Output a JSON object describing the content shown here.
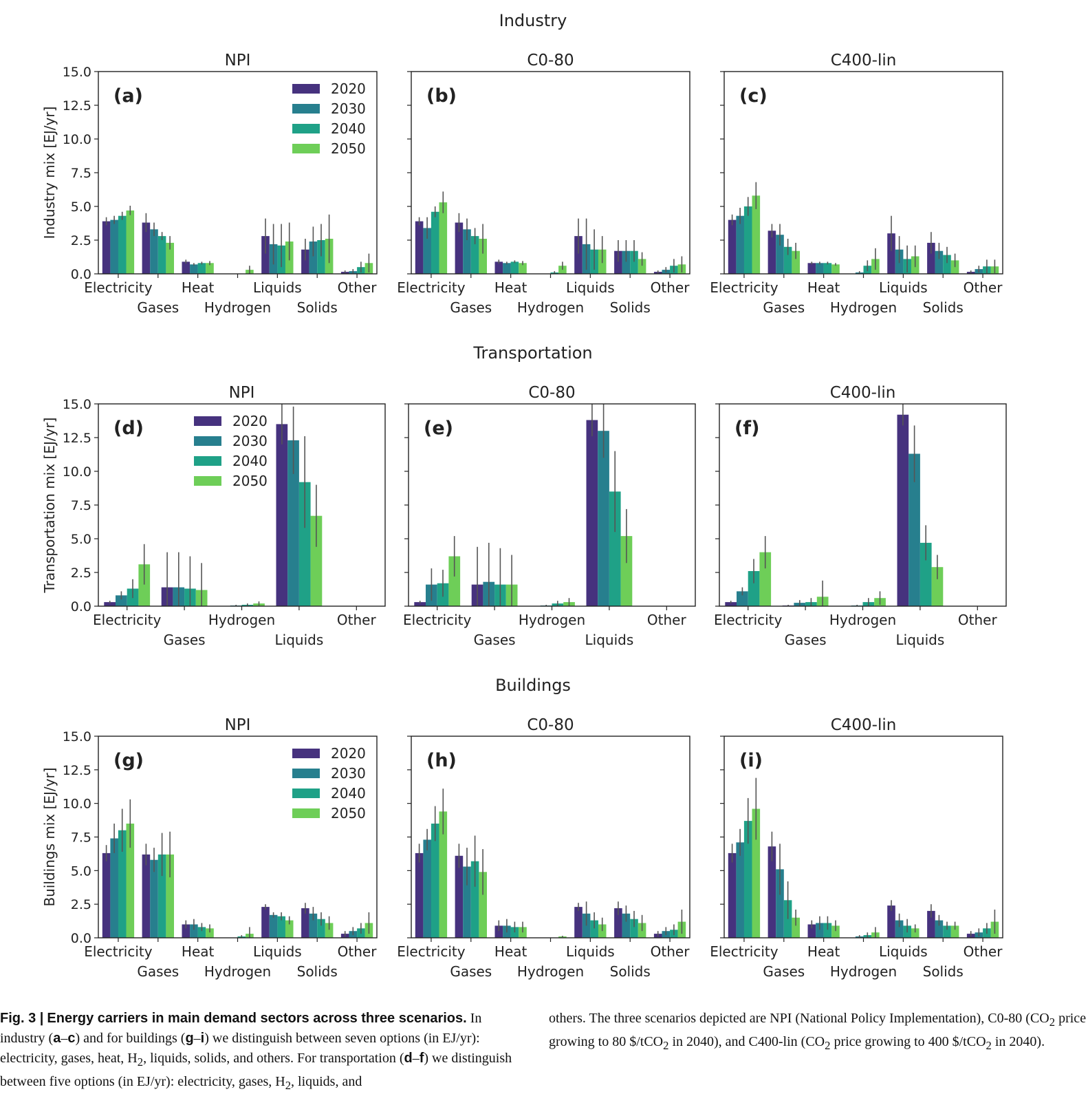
{
  "chart_data": [
    {
      "id": "industry",
      "type": "bar",
      "sector_title": "Industry",
      "ylabel": "Industry mix [EJ/yr]",
      "ylim": [
        0,
        15
      ],
      "yticks": [
        "0.0",
        "2.5",
        "5.0",
        "7.5",
        "10.0",
        "12.5",
        "15.0"
      ],
      "categories": [
        "Electricity",
        "Gases",
        "Heat",
        "Hydrogen",
        "Liquids",
        "Solids",
        "Other"
      ],
      "legend": [
        "2020",
        "2030",
        "2040",
        "2050"
      ],
      "legend_placement": "top-right of first panel",
      "panels": [
        {
          "label": "(a)",
          "title": "NPI",
          "values": [
            [
              3.9,
              4.0,
              4.3,
              4.7
            ],
            [
              3.8,
              3.3,
              2.8,
              2.3
            ],
            [
              0.9,
              0.7,
              0.8,
              0.8
            ],
            [
              0.0,
              0.0,
              0.0,
              0.3
            ],
            [
              2.8,
              2.2,
              2.1,
              2.4
            ],
            [
              1.8,
              2.4,
              2.5,
              2.6
            ],
            [
              0.15,
              0.2,
              0.5,
              0.8
            ]
          ],
          "errors": [
            [
              0.3,
              0.3,
              0.3,
              0.35
            ],
            [
              0.7,
              0.5,
              0.3,
              0.5
            ],
            [
              0.15,
              0.1,
              0.1,
              0.15
            ],
            [
              0.0,
              0.0,
              0.0,
              0.3
            ],
            [
              1.3,
              1.5,
              1.6,
              1.4
            ],
            [
              0.8,
              1.1,
              1.2,
              1.8
            ],
            [
              0.1,
              0.15,
              0.4,
              0.7
            ]
          ]
        },
        {
          "label": "(b)",
          "title": "C0-80",
          "values": [
            [
              3.9,
              3.4,
              4.6,
              5.3
            ],
            [
              3.8,
              3.3,
              2.8,
              2.6
            ],
            [
              0.9,
              0.8,
              0.9,
              0.8
            ],
            [
              0.0,
              0.0,
              0.1,
              0.6
            ],
            [
              2.8,
              2.2,
              1.8,
              1.8
            ],
            [
              1.7,
              1.7,
              1.7,
              1.1
            ],
            [
              0.15,
              0.3,
              0.6,
              0.7
            ]
          ],
          "errors": [
            [
              0.3,
              0.8,
              0.4,
              0.8
            ],
            [
              0.7,
              0.8,
              0.6,
              1.1
            ],
            [
              0.15,
              0.1,
              0.1,
              0.15
            ],
            [
              0.0,
              0.0,
              0.1,
              0.3
            ],
            [
              1.3,
              1.9,
              1.5,
              1.0
            ],
            [
              0.8,
              0.8,
              0.8,
              0.5
            ],
            [
              0.1,
              0.2,
              0.5,
              0.6
            ]
          ]
        },
        {
          "label": "(c)",
          "title": "C400-lin",
          "values": [
            [
              4.0,
              4.3,
              5.0,
              5.8
            ],
            [
              3.2,
              2.9,
              2.0,
              1.7
            ],
            [
              0.8,
              0.8,
              0.8,
              0.7
            ],
            [
              0.0,
              0.1,
              0.6,
              1.1
            ],
            [
              3.0,
              1.8,
              1.1,
              1.3
            ],
            [
              2.3,
              1.7,
              1.4,
              1.0
            ],
            [
              0.15,
              0.35,
              0.55,
              0.55
            ]
          ],
          "errors": [
            [
              0.4,
              0.6,
              0.7,
              1.0
            ],
            [
              0.5,
              0.8,
              0.6,
              0.6
            ],
            [
              0.1,
              0.1,
              0.1,
              0.1
            ],
            [
              0.0,
              0.1,
              0.4,
              0.8
            ],
            [
              1.3,
              1.0,
              1.0,
              0.8
            ],
            [
              0.8,
              0.6,
              0.6,
              0.5
            ],
            [
              0.1,
              0.25,
              0.5,
              0.5
            ]
          ]
        }
      ]
    },
    {
      "id": "transportation",
      "type": "bar",
      "sector_title": "Transportation",
      "ylabel": "Transportation mix [EJ/yr]",
      "ylim": [
        0,
        15
      ],
      "yticks": [
        "0.0",
        "2.5",
        "5.0",
        "7.5",
        "10.0",
        "12.5",
        "15.0"
      ],
      "categories": [
        "Electricity",
        "Gases",
        "Hydrogen",
        "Liquids",
        "Other"
      ],
      "legend": [
        "2020",
        "2030",
        "2040",
        "2050"
      ],
      "legend_placement": "upper-left of first panel",
      "panels": [
        {
          "label": "(d)",
          "title": "NPI",
          "values": [
            [
              0.3,
              0.8,
              1.3,
              3.1
            ],
            [
              1.4,
              1.4,
              1.3,
              1.2
            ],
            [
              0.0,
              0.05,
              0.1,
              0.2
            ],
            [
              13.5,
              12.3,
              9.2,
              6.7
            ],
            [
              0.0,
              0.0,
              0.0,
              0.0
            ]
          ],
          "errors": [
            [
              0.1,
              0.3,
              0.7,
              1.5
            ],
            [
              2.6,
              2.6,
              2.4,
              2.0
            ],
            [
              0.0,
              0.05,
              0.1,
              0.15
            ],
            [
              1.5,
              2.5,
              3.4,
              2.3
            ],
            [
              0.0,
              0.0,
              0.0,
              0.0
            ]
          ]
        },
        {
          "label": "(e)",
          "title": "C0-80",
          "values": [
            [
              0.3,
              1.6,
              1.7,
              3.7
            ],
            [
              1.6,
              1.8,
              1.6,
              1.6
            ],
            [
              0.0,
              0.05,
              0.2,
              0.3
            ],
            [
              13.8,
              13.0,
              8.5,
              5.2
            ],
            [
              0.0,
              0.0,
              0.0,
              0.0
            ]
          ],
          "errors": [
            [
              0.1,
              1.2,
              1.0,
              1.5
            ],
            [
              2.8,
              2.9,
              2.7,
              2.2
            ],
            [
              0.0,
              0.05,
              0.2,
              0.3
            ],
            [
              1.2,
              2.0,
              3.0,
              2.0
            ],
            [
              0.0,
              0.0,
              0.0,
              0.0
            ]
          ]
        },
        {
          "label": "(f)",
          "title": "C400-lin",
          "values": [
            [
              0.3,
              1.1,
              2.6,
              4.0
            ],
            [
              0.05,
              0.25,
              0.3,
              0.7
            ],
            [
              0.0,
              0.05,
              0.3,
              0.6
            ],
            [
              14.2,
              11.3,
              4.7,
              2.9
            ],
            [
              0.0,
              0.0,
              0.0,
              0.0
            ]
          ],
          "errors": [
            [
              0.1,
              0.3,
              0.9,
              1.2
            ],
            [
              0.05,
              0.2,
              0.3,
              1.2
            ],
            [
              0.0,
              0.05,
              0.3,
              0.5
            ],
            [
              0.8,
              2.1,
              1.3,
              0.9
            ],
            [
              0.0,
              0.0,
              0.0,
              0.0
            ]
          ]
        }
      ]
    },
    {
      "id": "buildings",
      "type": "bar",
      "sector_title": "Buildings",
      "ylabel": "Buildings mix [EJ/yr]",
      "ylim": [
        0,
        15
      ],
      "yticks": [
        "0.0",
        "2.5",
        "5.0",
        "7.5",
        "10.0",
        "12.5",
        "15.0"
      ],
      "categories": [
        "Electricity",
        "Gases",
        "Heat",
        "Hydrogen",
        "Liquids",
        "Solids",
        "Other"
      ],
      "legend": [
        "2020",
        "2030",
        "2040",
        "2050"
      ],
      "legend_placement": "top-right of first panel",
      "panels": [
        {
          "label": "(g)",
          "title": "NPI",
          "values": [
            [
              6.3,
              7.4,
              8.0,
              8.5
            ],
            [
              6.2,
              5.8,
              6.2,
              6.2
            ],
            [
              1.0,
              1.0,
              0.8,
              0.7
            ],
            [
              0.0,
              0.0,
              0.1,
              0.3
            ],
            [
              2.3,
              1.7,
              1.6,
              1.3
            ],
            [
              2.2,
              1.8,
              1.4,
              1.1
            ],
            [
              0.3,
              0.5,
              0.7,
              1.1
            ]
          ],
          "errors": [
            [
              0.6,
              1.1,
              1.6,
              1.8
            ],
            [
              0.8,
              0.9,
              1.6,
              1.7
            ],
            [
              0.3,
              0.4,
              0.3,
              0.3
            ],
            [
              0.0,
              0.0,
              0.1,
              0.5
            ],
            [
              0.2,
              0.2,
              0.3,
              0.3
            ],
            [
              0.4,
              0.5,
              0.5,
              0.5
            ],
            [
              0.2,
              0.3,
              0.4,
              0.8
            ]
          ]
        },
        {
          "label": "(h)",
          "title": "C0-80",
          "values": [
            [
              6.3,
              7.3,
              8.5,
              9.4
            ],
            [
              6.1,
              5.3,
              5.7,
              4.9
            ],
            [
              0.9,
              0.9,
              0.8,
              0.8
            ],
            [
              0.0,
              0.0,
              0.0,
              0.1
            ],
            [
              2.3,
              1.8,
              1.3,
              1.0
            ],
            [
              2.2,
              1.8,
              1.4,
              1.1
            ],
            [
              0.3,
              0.5,
              0.6,
              1.2
            ]
          ],
          "errors": [
            [
              0.7,
              0.8,
              1.3,
              1.7
            ],
            [
              0.9,
              1.4,
              1.9,
              1.7
            ],
            [
              0.4,
              0.5,
              0.4,
              0.4
            ],
            [
              0.0,
              0.0,
              0.0,
              0.05
            ],
            [
              0.3,
              0.9,
              0.6,
              0.5
            ],
            [
              0.5,
              0.6,
              0.6,
              0.6
            ],
            [
              0.2,
              0.3,
              0.4,
              0.9
            ]
          ]
        },
        {
          "label": "(i)",
          "title": "C400-lin",
          "values": [
            [
              6.3,
              7.1,
              8.7,
              9.6
            ],
            [
              6.8,
              5.1,
              2.8,
              1.5
            ],
            [
              1.0,
              1.1,
              1.1,
              0.9
            ],
            [
              0.0,
              0.1,
              0.2,
              0.4
            ],
            [
              2.4,
              1.3,
              0.9,
              0.7
            ],
            [
              2.0,
              1.3,
              0.9,
              0.9
            ],
            [
              0.3,
              0.4,
              0.7,
              1.2
            ]
          ],
          "errors": [
            [
              0.7,
              1.0,
              1.7,
              2.3
            ],
            [
              1.1,
              1.9,
              1.4,
              0.6
            ],
            [
              0.3,
              0.5,
              0.5,
              0.4
            ],
            [
              0.0,
              0.1,
              0.2,
              0.4
            ],
            [
              0.4,
              0.5,
              0.5,
              0.3
            ],
            [
              0.5,
              0.4,
              0.3,
              0.3
            ],
            [
              0.2,
              0.3,
              0.4,
              0.9
            ]
          ]
        }
      ]
    }
  ],
  "colors": {
    "2020": "#46327e",
    "2030": "#277f8e",
    "2040": "#1fa187",
    "2050": "#6ece58",
    "errorbar": "#555555",
    "axis": "#222222"
  },
  "caption": {
    "fig_label": "Fig. 3 |",
    "bold_title": "Energy carriers in main demand sectors across three scenarios.",
    "left_text_html": "In industry (<b>a</b>–<b>c</b>) and for buildings (<b>g</b>–<b>i</b>) we distinguish between seven options (in EJ/yr): electricity, gases, heat, H<sub>2</sub>, liquids, solids, and others. For transportation (<b>d</b>–<b>f</b>) we distinguish between five options (in EJ/yr): electricity, gases, H<sub>2</sub>, liquids, and",
    "right_text_html": "others. The three scenarios depicted are NPI (National Policy Implementation), C0-80 (CO<sub>2</sub> price growing to 80 $/tCO<sub>2</sub> in 2040), and C400-lin (CO<sub>2</sub> price growing to 400 $/tCO<sub>2</sub> in 2040)."
  }
}
